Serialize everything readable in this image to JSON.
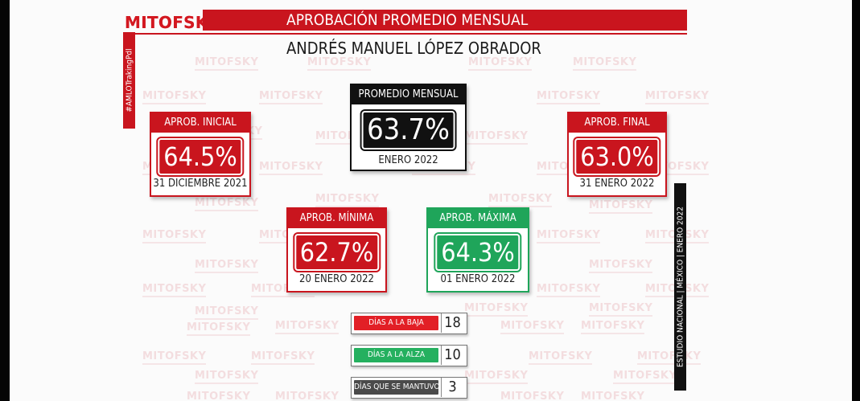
{
  "header": {
    "logo": "MITOFSKY",
    "title": "APROBACIÓN PROMEDIO MENSUAL",
    "subtitle": "ANDRÉS MANUEL LÓPEZ OBRADOR",
    "side_tag": "#AMLOTrakingPdl",
    "right_tag": "ESTUDIO NACIONAL | MÉXICO | ENERO 2022"
  },
  "watermark": "MITOFSKY",
  "cards": {
    "promedio": {
      "label": "PROMEDIO MENSUAL",
      "value": "63.7%",
      "date": "ENERO 2022"
    },
    "inicial": {
      "label": "APROB. INICIAL",
      "value": "64.5%",
      "date": "31 DICIEMBRE 2021"
    },
    "final": {
      "label": "APROB. FINAL",
      "value": "63.0%",
      "date": "31 ENERO 2022"
    },
    "minima": {
      "label": "APROB. MÍNIMA",
      "value": "62.7%",
      "date": "20 ENERO 2022"
    },
    "maxima": {
      "label": "APROB. MÁXIMA",
      "value": "64.3%",
      "date": "01 ENERO 2022"
    }
  },
  "counters": {
    "baja": {
      "label": "DÍAS A LA BAJA",
      "value": "18"
    },
    "alza": {
      "label": "DÍAS A LA ALZA",
      "value": "10"
    },
    "mantuvo": {
      "label": "DÍAS QUE SE MANTUVO",
      "value": "3"
    }
  },
  "colors": {
    "red": "#c9151e",
    "green": "#1fa55a",
    "black": "#111111"
  }
}
